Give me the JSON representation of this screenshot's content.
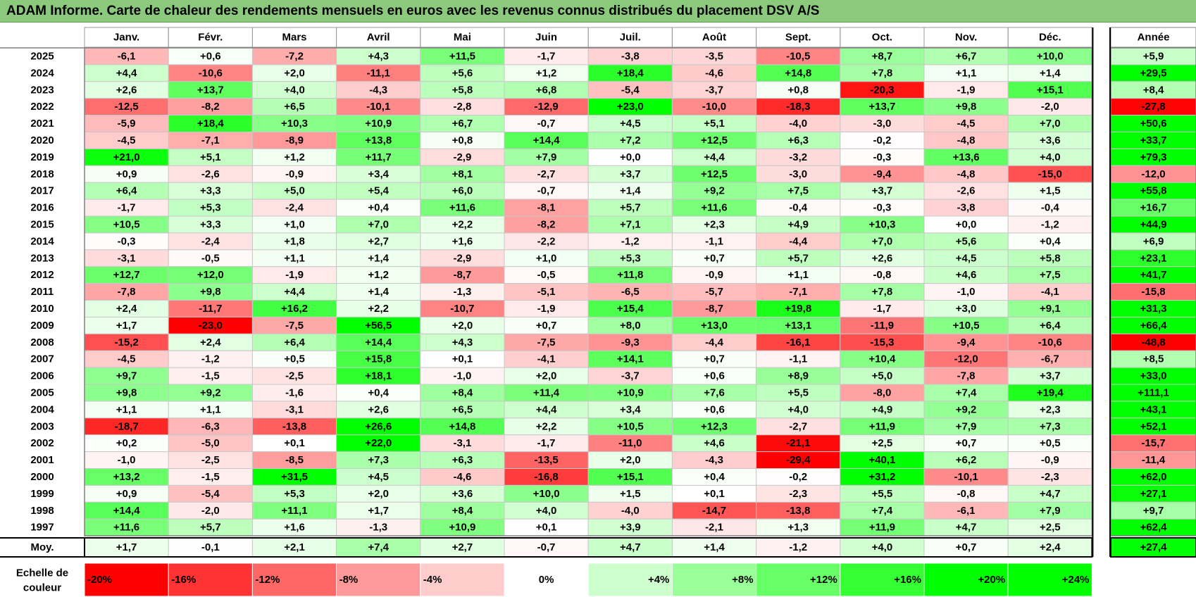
{
  "title": "ADAM Informe. Carte de chaleur des rendements mensuels en euros avec les revenus connus distribués du placement DSV A/S",
  "chart_data": {
    "type": "heatmap",
    "title": "ADAM Informe. Carte de chaleur des rendements mensuels en euros avec les revenus connus distribués du placement DSV A/S",
    "columns": [
      "Janv.",
      "Févr.",
      "Mars",
      "Avril",
      "Mai",
      "Juin",
      "Juil.",
      "Août",
      "Sept.",
      "Oct.",
      "Nov.",
      "Déc."
    ],
    "year_column_label": "Année",
    "rows": [
      {
        "year": "2025",
        "values": [
          "-6,1",
          "+0,6",
          "-7,2",
          "+4,3",
          "+11,5",
          "-1,7",
          "-3,8",
          "-3,5",
          "-10,5",
          "+8,7",
          "+6,7",
          "+10,0"
        ],
        "annual": "+5,9"
      },
      {
        "year": "2024",
        "values": [
          "+4,4",
          "-10,6",
          "+2,0",
          "-11,1",
          "+5,6",
          "+1,2",
          "+18,4",
          "-4,6",
          "+14,8",
          "+7,8",
          "+1,1",
          "+1,4"
        ],
        "annual": "+29,5"
      },
      {
        "year": "2023",
        "values": [
          "+2,6",
          "+13,7",
          "+4,0",
          "-4,3",
          "+5,8",
          "+6,8",
          "-5,4",
          "-3,7",
          "+0,8",
          "-20,3",
          "-1,9",
          "+15,1"
        ],
        "annual": "+8,4"
      },
      {
        "year": "2022",
        "values": [
          "-12,5",
          "-8,2",
          "+6,5",
          "-10,1",
          "-2,8",
          "-12,9",
          "+23,0",
          "-10,0",
          "-18,3",
          "+13,7",
          "+9,8",
          "-2,0"
        ],
        "annual": "-27,8"
      },
      {
        "year": "2021",
        "values": [
          "-5,9",
          "+18,4",
          "+10,3",
          "+10,9",
          "+6,7",
          "-0,7",
          "+4,5",
          "+5,1",
          "-4,0",
          "-3,0",
          "-4,5",
          "+7,0"
        ],
        "annual": "+50,6"
      },
      {
        "year": "2020",
        "values": [
          "-4,5",
          "-7,1",
          "-8,9",
          "+13,8",
          "+0,8",
          "+14,4",
          "+7,2",
          "+12,5",
          "+6,3",
          "-0,2",
          "-4,8",
          "+3,6"
        ],
        "annual": "+33,7"
      },
      {
        "year": "2019",
        "values": [
          "+21,0",
          "+5,1",
          "+1,2",
          "+11,7",
          "-2,9",
          "+7,9",
          "+0,0",
          "+4,4",
          "-3,2",
          "-0,3",
          "+13,6",
          "+4,0"
        ],
        "annual": "+79,3"
      },
      {
        "year": "2018",
        "values": [
          "+0,9",
          "-2,6",
          "-0,9",
          "+3,4",
          "+8,1",
          "-2,7",
          "+3,7",
          "+12,5",
          "-3,0",
          "-9,4",
          "-4,8",
          "-15,0"
        ],
        "annual": "-12,0"
      },
      {
        "year": "2017",
        "values": [
          "+6,4",
          "+3,3",
          "+5,0",
          "+5,4",
          "+6,0",
          "-0,7",
          "+1,4",
          "+9,2",
          "+7,5",
          "+3,7",
          "-2,6",
          "+1,5"
        ],
        "annual": "+55,8"
      },
      {
        "year": "2016",
        "values": [
          "-1,7",
          "+5,3",
          "-2,4",
          "+0,4",
          "+11,6",
          "-8,1",
          "+5,7",
          "+11,6",
          "-0,4",
          "-0,3",
          "-3,8",
          "-0,4"
        ],
        "annual": "+16,7"
      },
      {
        "year": "2015",
        "values": [
          "+10,5",
          "+3,3",
          "+1,0",
          "+7,0",
          "+2,2",
          "-8,2",
          "+7,1",
          "+2,3",
          "+4,9",
          "+10,3",
          "+0,0",
          "-1,2"
        ],
        "annual": "+44,9"
      },
      {
        "year": "2014",
        "values": [
          "-0,3",
          "-2,4",
          "+1,8",
          "+2,7",
          "+1,6",
          "-2,2",
          "-1,2",
          "-1,1",
          "-4,4",
          "+7,0",
          "+5,6",
          "+0,4"
        ],
        "annual": "+6,9"
      },
      {
        "year": "2013",
        "values": [
          "-3,1",
          "-0,5",
          "+1,1",
          "+1,4",
          "-2,9",
          "+1,0",
          "+5,3",
          "+0,7",
          "+5,7",
          "+2,6",
          "+4,5",
          "+5,8"
        ],
        "annual": "+23,1"
      },
      {
        "year": "2012",
        "values": [
          "+12,7",
          "+12,0",
          "-1,9",
          "+1,2",
          "-8,7",
          "-0,5",
          "+11,8",
          "-0,9",
          "+1,1",
          "-0,8",
          "+4,6",
          "+7,5"
        ],
        "annual": "+41,7"
      },
      {
        "year": "2011",
        "values": [
          "-7,8",
          "+9,8",
          "+4,4",
          "+1,4",
          "-1,3",
          "-5,1",
          "-6,5",
          "-5,7",
          "-7,1",
          "+7,8",
          "-1,0",
          "-4,1"
        ],
        "annual": "-15,8"
      },
      {
        "year": "2010",
        "values": [
          "+2,4",
          "-11,7",
          "+16,2",
          "+2,2",
          "-10,7",
          "-1,9",
          "+15,4",
          "-8,7",
          "+19,8",
          "-1,7",
          "+3,0",
          "+9,1"
        ],
        "annual": "+31,3"
      },
      {
        "year": "2009",
        "values": [
          "+1,7",
          "-23,0",
          "-7,5",
          "+56,5",
          "+2,0",
          "+0,7",
          "+8,0",
          "+13,0",
          "+13,1",
          "-11,9",
          "+10,5",
          "+6,4"
        ],
        "annual": "+66,4"
      },
      {
        "year": "2008",
        "values": [
          "-15,2",
          "+2,4",
          "+6,4",
          "+14,4",
          "+4,3",
          "-7,5",
          "-9,3",
          "-4,4",
          "-16,1",
          "-15,3",
          "-9,4",
          "-10,6"
        ],
        "annual": "-48,8"
      },
      {
        "year": "2007",
        "values": [
          "-4,5",
          "-1,2",
          "+0,5",
          "+15,8",
          "+0,1",
          "-4,1",
          "+14,1",
          "+0,7",
          "-1,1",
          "+10,4",
          "-12,0",
          "-6,7"
        ],
        "annual": "+8,5"
      },
      {
        "year": "2006",
        "values": [
          "+9,7",
          "-1,5",
          "-2,5",
          "+18,1",
          "-1,0",
          "+2,0",
          "-3,7",
          "+0,6",
          "+8,9",
          "+5,0",
          "-7,8",
          "+3,7"
        ],
        "annual": "+33,0"
      },
      {
        "year": "2005",
        "values": [
          "+9,8",
          "+9,2",
          "-1,6",
          "+0,4",
          "+8,4",
          "+11,4",
          "+10,9",
          "+7,6",
          "+5,5",
          "-8,0",
          "+7,4",
          "+19,4"
        ],
        "annual": "+111,1"
      },
      {
        "year": "2004",
        "values": [
          "+1,1",
          "+1,1",
          "-3,1",
          "+2,6",
          "+6,5",
          "+4,4",
          "+3,4",
          "+0,6",
          "+4,0",
          "+4,9",
          "+9,2",
          "+2,3"
        ],
        "annual": "+43,1"
      },
      {
        "year": "2003",
        "values": [
          "-18,7",
          "-6,3",
          "-13,8",
          "+26,6",
          "+14,8",
          "+2,2",
          "+10,5",
          "+12,3",
          "-2,7",
          "+11,9",
          "+7,9",
          "+7,3"
        ],
        "annual": "+52,1"
      },
      {
        "year": "2002",
        "values": [
          "+0,2",
          "-5,0",
          "+0,1",
          "+22,0",
          "-3,1",
          "-1,7",
          "-11,0",
          "+4,6",
          "-21,1",
          "+2,5",
          "+0,7",
          "+0,5"
        ],
        "annual": "-15,7"
      },
      {
        "year": "2001",
        "values": [
          "-1,0",
          "-2,5",
          "-8,5",
          "+7,3",
          "+6,3",
          "-13,5",
          "+2,0",
          "-4,3",
          "-29,4",
          "+40,1",
          "+6,2",
          "-0,9"
        ],
        "annual": "-11,4"
      },
      {
        "year": "2000",
        "values": [
          "+13,2",
          "-1,5",
          "+31,5",
          "+4,5",
          "-4,6",
          "-16,8",
          "+15,1",
          "+0,4",
          "-0,2",
          "+31,2",
          "-10,1",
          "-2,3"
        ],
        "annual": "+62,0"
      },
      {
        "year": "1999",
        "values": [
          "+0,9",
          "-5,4",
          "+5,3",
          "+2,0",
          "+3,6",
          "+10,0",
          "+1,5",
          "+0,1",
          "-2,3",
          "+5,5",
          "-0,8",
          "+4,7"
        ],
        "annual": "+27,1"
      },
      {
        "year": "1998",
        "values": [
          "+14,4",
          "-2,0",
          "+11,1",
          "+1,7",
          "+8,4",
          "+4,0",
          "-4,0",
          "-14,7",
          "-13,8",
          "+7,4",
          "-6,1",
          "+7,9"
        ],
        "annual": "+9,7"
      },
      {
        "year": "1997",
        "values": [
          "+11,6",
          "+5,7",
          "+1,6",
          "-1,3",
          "+10,9",
          "+0,1",
          "+3,9",
          "-2,1",
          "+1,3",
          "+11,9",
          "+4,7",
          "+2,5"
        ],
        "annual": "+62,4"
      }
    ],
    "average_row": {
      "label": "Moy.",
      "values": [
        "+1,7",
        "-0,1",
        "+2,1",
        "+7,4",
        "+2,7",
        "-0,7",
        "+4,7",
        "+1,4",
        "-1,2",
        "+4,0",
        "+0,7",
        "+2,4"
      ],
      "annual": "+27,4"
    },
    "color_scale": {
      "label": "Echelle de couleur",
      "stops": [
        "-20%",
        "-16%",
        "-12%",
        "-8%",
        "-4%",
        "0%",
        "+4%",
        "+8%",
        "+12%",
        "+16%",
        "+20%",
        "+24%"
      ],
      "negative_color": "#ff0000",
      "positive_color": "#00ff00",
      "neutral_color": "#ffffff"
    }
  }
}
